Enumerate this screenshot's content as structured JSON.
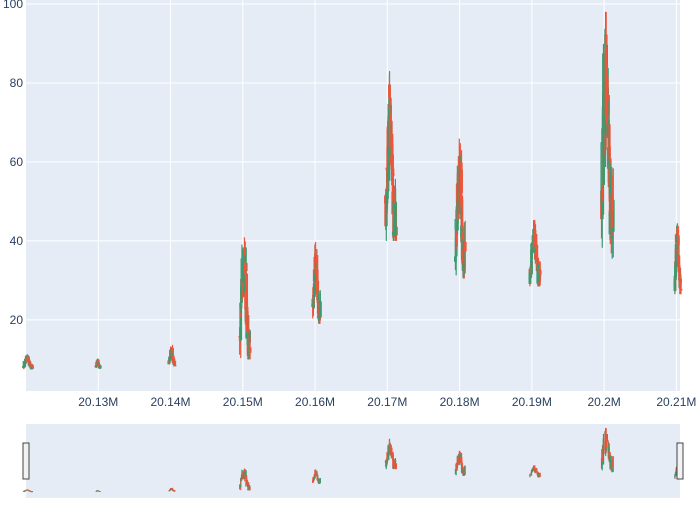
{
  "chart_data": {
    "type": "candlestick",
    "title": "",
    "xlabel": "",
    "ylabel": "",
    "xlim": [
      20120000,
      20210500
    ],
    "ylim": [
      2,
      101
    ],
    "x_tick_labels": [
      "20.13M",
      "20.14M",
      "20.15M",
      "20.16M",
      "20.17M",
      "20.18M",
      "20.19M",
      "20.2M",
      "20.21M"
    ],
    "x_tick_values": [
      20130000,
      20140000,
      20150000,
      20160000,
      20170000,
      20180000,
      20190000,
      20200000,
      20210000
    ],
    "y_tick_labels": [
      "20",
      "40",
      "60",
      "80",
      "100"
    ],
    "y_tick_values": [
      20,
      40,
      60,
      80,
      100
    ],
    "grid": true,
    "rangeslider": true,
    "colors": {
      "increasing": "#3d9970",
      "decreasing": "#ef553b",
      "plot_bg": "#e5ecf6",
      "grid": "#ffffff"
    },
    "clusters": [
      {
        "x_center": 20120300,
        "spread": 600,
        "y_low": 7.5,
        "y_high": 11.5
      },
      {
        "x_center": 20130000,
        "spread": 300,
        "y_low": 7.8,
        "y_high": 10.2
      },
      {
        "x_center": 20140200,
        "spread": 400,
        "y_low": 8.2,
        "y_high": 13.8
      },
      {
        "x_center": 20150300,
        "spread": 700,
        "y_low": 10.0,
        "y_high": 42.5
      },
      {
        "x_center": 20160200,
        "spread": 500,
        "y_low": 19.0,
        "y_high": 40.5
      },
      {
        "x_center": 20170500,
        "spread": 700,
        "y_low": 40.0,
        "y_high": 83.0
      },
      {
        "x_center": 20180100,
        "spread": 600,
        "y_low": 30.5,
        "y_high": 69.0
      },
      {
        "x_center": 20190500,
        "spread": 700,
        "y_low": 28.5,
        "y_high": 47.0
      },
      {
        "x_center": 20200400,
        "spread": 800,
        "y_low": 35.5,
        "y_high": 98.0
      },
      {
        "x_center": 20210200,
        "spread": 400,
        "y_low": 26.5,
        "y_high": 46.5
      }
    ]
  }
}
